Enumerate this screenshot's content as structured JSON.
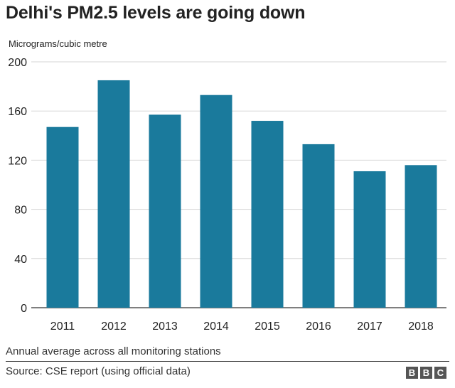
{
  "chart_data": {
    "type": "bar",
    "title": "Delhi's PM2.5 levels are going down",
    "ylabel": "Micrograms/cubic metre",
    "xlabel": "",
    "categories": [
      "2011",
      "2012",
      "2013",
      "2014",
      "2015",
      "2016",
      "2017",
      "2018"
    ],
    "values": [
      147,
      185,
      157,
      173,
      152,
      133,
      111,
      116
    ],
    "ylim": [
      0,
      200
    ],
    "yticks": [
      "0",
      "40",
      "80",
      "120",
      "160",
      "200"
    ],
    "grid": true,
    "bar_color": "#1a7a9c"
  },
  "footer": {
    "note": "Annual average across all monitoring stations",
    "source": "Source: CSE report (using official data)",
    "logo_letters": [
      "B",
      "B",
      "C"
    ]
  }
}
